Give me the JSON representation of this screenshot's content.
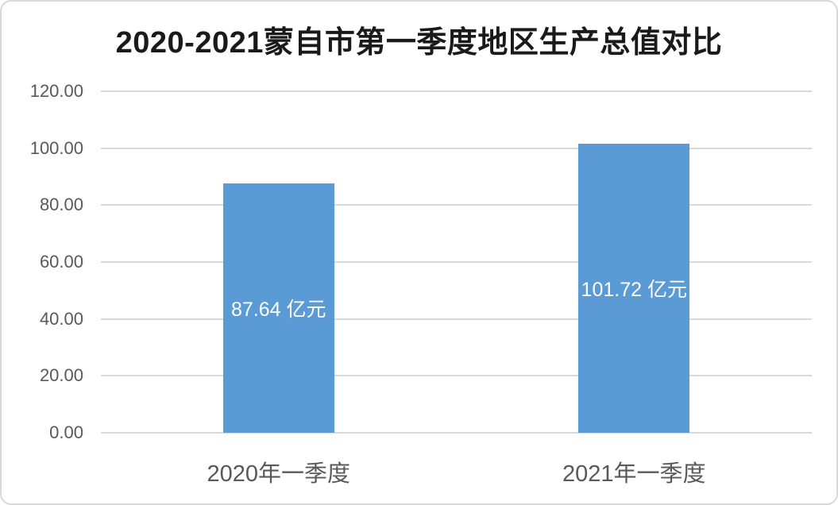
{
  "chart_data": {
    "type": "bar",
    "title": "2020-2021蒙自市第一季度地区生产总值对比",
    "categories": [
      "2020年一季度",
      "2021年一季度"
    ],
    "values": [
      87.64,
      101.72
    ],
    "data_labels": [
      "87.64 亿元",
      "101.72 亿元"
    ],
    "unit": "亿元",
    "xlabel": "",
    "ylabel": "",
    "ylim": [
      0,
      120
    ],
    "ytick_step": 20,
    "yticks": [
      "120.00",
      "100.00",
      "80.00",
      "60.00",
      "40.00",
      "20.00",
      "0.00"
    ],
    "grid": true,
    "legend": "none",
    "colors": {
      "bar": "#5b9bd5",
      "gridline": "#d9d9d9",
      "axis_text": "#595959",
      "title_text": "#1a1a1a",
      "data_label_text": "#ffffff",
      "frame_border": "#d9d9d9"
    }
  }
}
